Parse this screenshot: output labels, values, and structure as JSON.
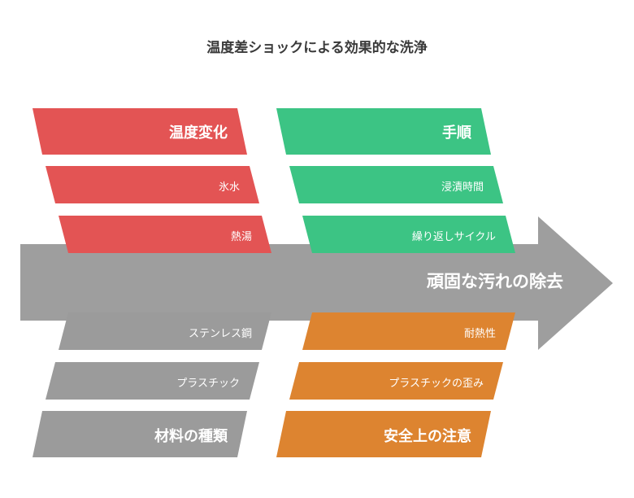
{
  "title": "温度差ショックによる効果的な洗浄",
  "effect": "頑固な汚れの除去",
  "colors": {
    "red": "#e35454",
    "green": "#3cc484",
    "gray": "#9b9b9b",
    "orange": "#dd8430",
    "arrow": "#9e9e9e"
  },
  "categories": {
    "temperature": {
      "label": "温度変化",
      "items": [
        "氷水",
        "熱湯"
      ]
    },
    "procedure": {
      "label": "手順",
      "items": [
        "浸漬時間",
        "繰り返しサイクル"
      ]
    },
    "materials": {
      "label": "材料の種類",
      "items": [
        "ステンレス鋼",
        "プラスチック"
      ]
    },
    "safety": {
      "label": "安全上の注意",
      "items": [
        "耐熱性",
        "プラスチックの歪み"
      ]
    }
  }
}
